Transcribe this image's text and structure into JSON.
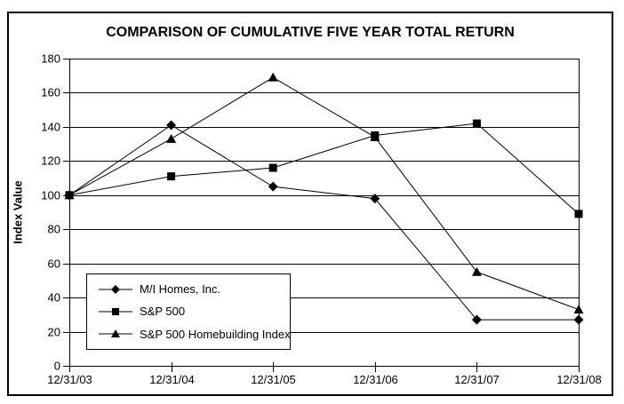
{
  "chart_data": {
    "type": "line",
    "title": "COMPARISON OF CUMULATIVE FIVE YEAR TOTAL RETURN",
    "xlabel": "",
    "ylabel": "Index Value",
    "categories": [
      "12/31/03",
      "12/31/04",
      "12/31/05",
      "12/31/06",
      "12/31/07",
      "12/31/08"
    ],
    "ylim": [
      0,
      180
    ],
    "ytick_step": 20,
    "grid": true,
    "legend_position": "inside-bottom-left",
    "series": [
      {
        "name": "M/I Homes, Inc.",
        "marker": "diamond",
        "values": [
          100,
          141,
          105,
          98,
          27,
          27
        ]
      },
      {
        "name": "S&P 500",
        "marker": "square",
        "values": [
          100,
          111,
          116,
          135,
          142,
          89
        ]
      },
      {
        "name": "S&P 500 Homebuilding Index",
        "marker": "triangle",
        "values": [
          100,
          133,
          169,
          134,
          55,
          33
        ]
      }
    ],
    "colors": {
      "line": "#000000",
      "text": "#000000",
      "background": "#ffffff"
    }
  }
}
